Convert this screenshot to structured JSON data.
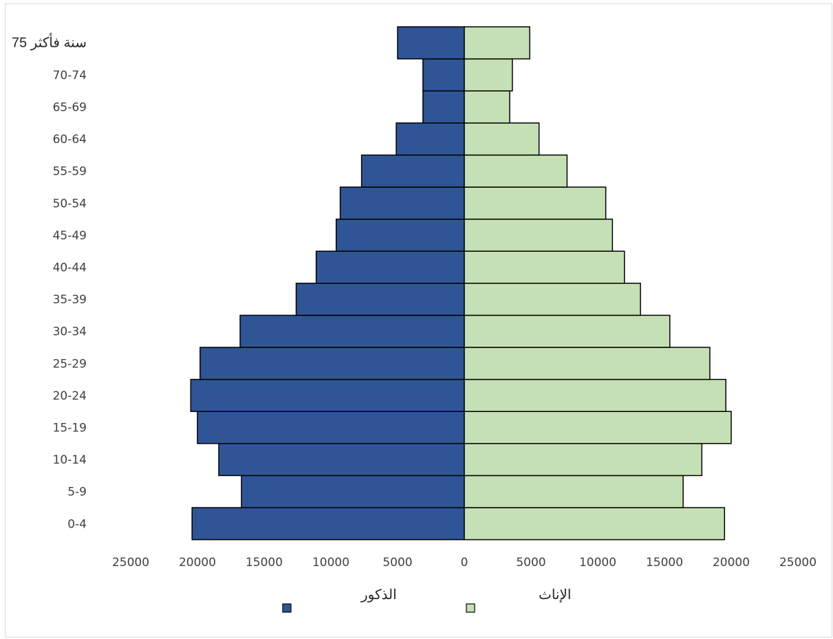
{
  "chart_data": {
    "type": "bar",
    "orientation": "horizontal",
    "subtype": "population-pyramid",
    "title": "",
    "xlabel": "",
    "ylabel": "",
    "categories": [
      "0-4",
      "5-9",
      "10-14",
      "15-19",
      "20-24",
      "25-29",
      "30-34",
      "35-39",
      "40-44",
      "45-49",
      "50-54",
      "55-59",
      "60-64",
      "65-69",
      "70-74",
      "75 سنة فأكثر"
    ],
    "series": [
      {
        "name": "الذكور",
        "color": "#2f5597",
        "side": "left",
        "values": [
          20400,
          16700,
          18400,
          20000,
          20500,
          19800,
          16800,
          12600,
          11100,
          9600,
          9300,
          7700,
          5100,
          3100,
          3100,
          5000
        ]
      },
      {
        "name": "الإناث",
        "color": "#c5e0b4",
        "side": "right",
        "values": [
          19500,
          16400,
          17800,
          20000,
          19600,
          18400,
          15400,
          13200,
          12000,
          11100,
          10600,
          7700,
          5600,
          3400,
          3600,
          4900
        ]
      }
    ],
    "xlim": [
      -25000,
      25000
    ],
    "x_ticks": [
      "25000",
      "20000",
      "15000",
      "10000",
      "5000",
      "0",
      "5000",
      "10000",
      "15000",
      "20000",
      "25000"
    ],
    "x_tick_values": [
      -25000,
      -20000,
      -15000,
      -10000,
      -5000,
      0,
      5000,
      10000,
      15000,
      20000,
      25000
    ],
    "grid": false,
    "legend_position": "bottom",
    "legend": [
      {
        "label": "الإناث",
        "color": "#c5e0b4"
      },
      {
        "label": "الذكور",
        "color": "#2f5597"
      }
    ]
  }
}
